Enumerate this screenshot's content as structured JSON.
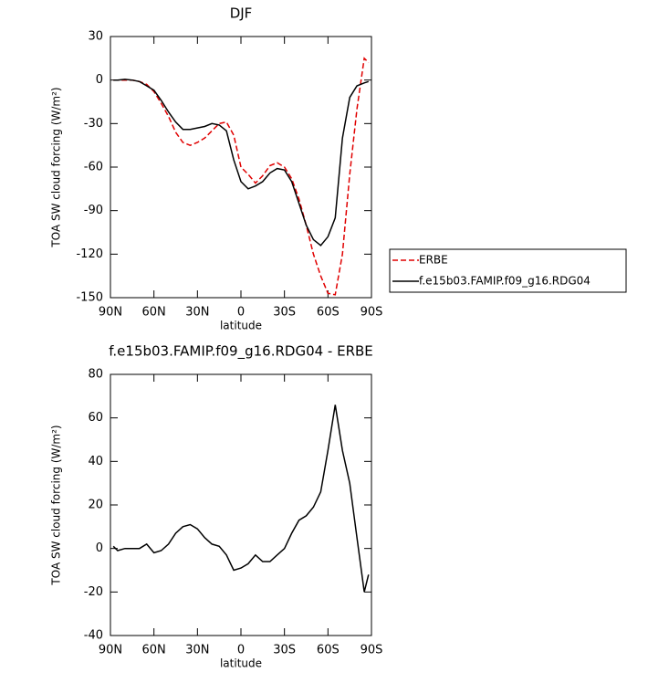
{
  "chart_data": [
    {
      "type": "line",
      "title": "DJF",
      "x_label": "latitude",
      "y_label": "TOA SW cloud forcing (W/m²)",
      "x": [
        88,
        85,
        80,
        75,
        70,
        65,
        60,
        55,
        50,
        45,
        40,
        35,
        30,
        25,
        20,
        15,
        10,
        5,
        0,
        -5,
        -10,
        -15,
        -20,
        -25,
        -30,
        -35,
        -40,
        -45,
        -50,
        -55,
        -60,
        -65,
        -70,
        -75,
        -80,
        -85,
        -88
      ],
      "series": [
        {
          "name": "ERBE",
          "color": "#e00000",
          "line_style": "dashed",
          "values": [
            0,
            0,
            0,
            0,
            -1,
            -3,
            -8,
            -16,
            -25,
            -36,
            -43,
            -45,
            -43,
            -40,
            -35,
            -30,
            -29,
            -38,
            -60,
            -65,
            -71,
            -66,
            -59,
            -57,
            -60,
            -68,
            -82,
            -100,
            -120,
            -135,
            -147,
            -148,
            -120,
            -65,
            -20,
            15,
            12
          ]
        },
        {
          "name": "f.e15b03.FAMIP.f09_g16.RDG04",
          "color": "#000000",
          "line_style": "solid",
          "values": [
            0,
            0,
            0.5,
            0,
            -1,
            -4,
            -7,
            -14,
            -22,
            -29,
            -34,
            -34,
            -33,
            -32,
            -30,
            -31,
            -35,
            -55,
            -70,
            -75,
            -73,
            -70,
            -64,
            -61,
            -62,
            -70,
            -85,
            -100,
            -110,
            -114,
            -108,
            -95,
            -40,
            -12,
            -4,
            -2,
            -1
          ]
        }
      ],
      "xlim": [
        90,
        -90
      ],
      "xticks": [
        {
          "value": 90,
          "label": "90N"
        },
        {
          "value": 60,
          "label": "60N"
        },
        {
          "value": 30,
          "label": "30N"
        },
        0,
        {
          "value": -30,
          "label": "30S"
        },
        {
          "value": -60,
          "label": "60S"
        },
        {
          "value": -90,
          "label": "90S"
        }
      ],
      "ylim": [
        -150,
        30
      ],
      "yticks": [
        -150,
        -120,
        -90,
        -60,
        -30,
        0,
        30
      ],
      "legend_position": "outside right"
    },
    {
      "type": "line",
      "title": "f.e15b03.FAMIP.f09_g16.RDG04 - ERBE",
      "x_label": "latitude",
      "y_label": "TOA SW cloud forcing (W/m²)",
      "x": [
        88,
        85,
        80,
        75,
        70,
        65,
        60,
        55,
        50,
        45,
        40,
        35,
        30,
        25,
        20,
        15,
        10,
        5,
        0,
        -5,
        -10,
        -15,
        -20,
        -25,
        -30,
        -35,
        -40,
        -45,
        -50,
        -55,
        -60,
        -65,
        -70,
        -75,
        -80,
        -85,
        -88
      ],
      "values": [
        1,
        -1,
        0,
        0,
        0,
        2,
        -2,
        -1,
        2,
        7,
        10,
        11,
        9,
        5,
        2,
        1,
        -3,
        -10,
        -9,
        -7,
        -3,
        -6,
        -6,
        -3,
        0,
        7,
        13,
        15,
        19,
        26,
        45,
        66,
        45,
        30,
        5,
        -20,
        -12
      ],
      "color": "#000000",
      "xlim": [
        90,
        -90
      ],
      "xticks": [
        {
          "value": 90,
          "label": "90N"
        },
        {
          "value": 60,
          "label": "60N"
        },
        {
          "value": 30,
          "label": "30N"
        },
        0,
        {
          "value": -30,
          "label": "30S"
        },
        {
          "value": -60,
          "label": "60S"
        },
        {
          "value": -90,
          "label": "90S"
        }
      ],
      "ylim": [
        -40,
        80
      ],
      "yticks": [
        -40,
        -20,
        0,
        20,
        40,
        60,
        80
      ]
    }
  ]
}
